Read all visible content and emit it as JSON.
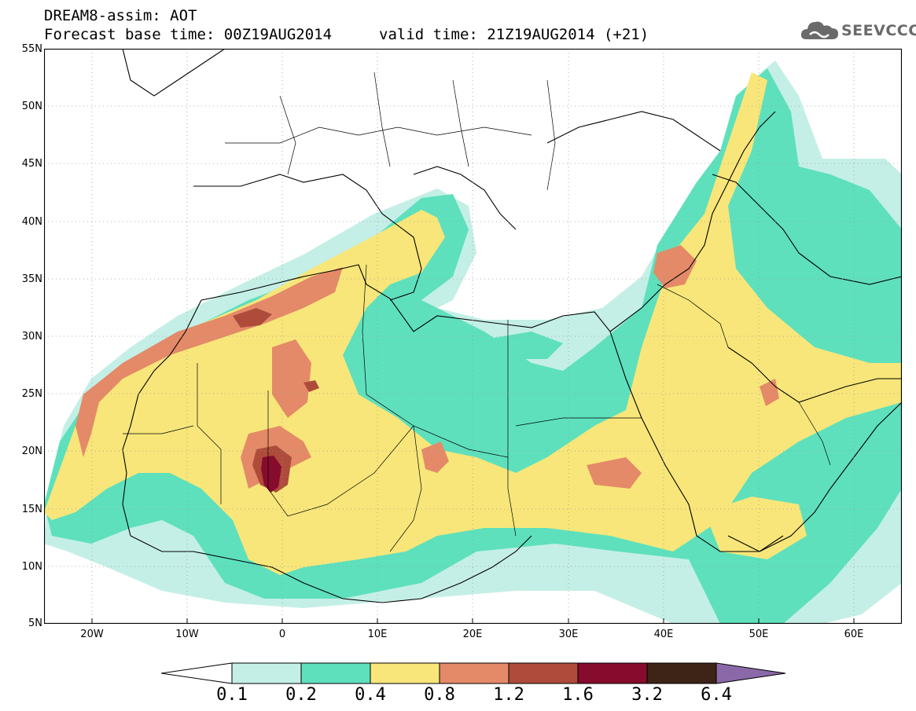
{
  "header": {
    "title": "DREAM8-assim: AOT",
    "base_time": "Forecast base time: 00Z19AUG2014",
    "valid_time": "valid time: 21Z19AUG2014 (+21)"
  },
  "logo": {
    "text": "SEEVCCC",
    "icon": "cloud-icon",
    "color": "#6a6a6a"
  },
  "axes": {
    "lat_labels": [
      "55N",
      "50N",
      "45N",
      "40N",
      "35N",
      "30N",
      "25N",
      "20N",
      "15N",
      "10N",
      "5N"
    ],
    "lon_labels": [
      "20W",
      "10W",
      "0",
      "10E",
      "20E",
      "30E",
      "40E",
      "50E",
      "60E"
    ],
    "lat_range": [
      5,
      55
    ],
    "lon_range": [
      -25,
      65
    ],
    "grid": "dotted"
  },
  "colorbar": {
    "labels": [
      "0.1",
      "0.2",
      "0.4",
      "0.8",
      "1.2",
      "1.6",
      "3.2",
      "6.4"
    ],
    "colors": [
      "#ffffff",
      "#c4efe6",
      "#5ee0bd",
      "#f8e67a",
      "#e48a68",
      "#ae4b3b",
      "#860b2c",
      "#3e2416",
      "#8b69a8"
    ]
  }
}
